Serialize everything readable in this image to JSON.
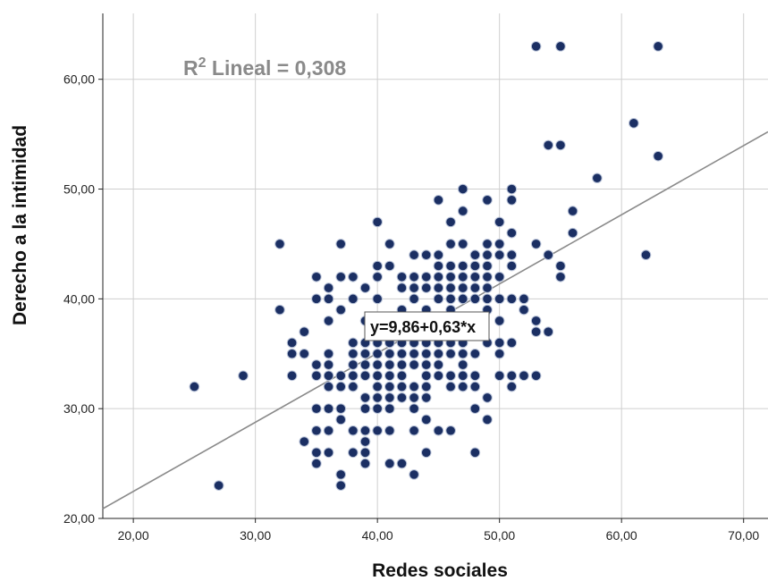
{
  "chart_data": {
    "type": "scatter",
    "xlabel": "Redes sociales",
    "ylabel": "Derecho a la intimidad",
    "xlim": [
      17.5,
      72
    ],
    "ylim": [
      20,
      66
    ],
    "x_ticks": [
      "20,00",
      "30,00",
      "40,00",
      "50,00",
      "60,00",
      "70,00"
    ],
    "y_ticks": [
      "20,00",
      "30,00",
      "40,00",
      "50,00",
      "60,00"
    ],
    "grid": true,
    "r2_text": "R² Lineal = 0,308",
    "r2_prefix": "R",
    "r2_sup": "2",
    "r2_rest": " Lineal = 0,308",
    "fit_label": "y=9,86+0,63*x",
    "fit": {
      "intercept": 9.86,
      "slope": 0.63
    },
    "point_color": "#1b2f63",
    "points": [
      [
        25,
        32
      ],
      [
        27,
        23
      ],
      [
        29,
        33
      ],
      [
        32,
        45
      ],
      [
        32,
        39
      ],
      [
        33,
        36
      ],
      [
        33,
        35
      ],
      [
        33,
        33
      ],
      [
        34,
        37
      ],
      [
        34,
        35
      ],
      [
        34,
        27
      ],
      [
        35,
        42
      ],
      [
        35,
        40
      ],
      [
        35,
        34
      ],
      [
        35,
        33
      ],
      [
        35,
        30
      ],
      [
        35,
        28
      ],
      [
        35,
        26
      ],
      [
        35,
        25
      ],
      [
        36,
        41
      ],
      [
        36,
        40
      ],
      [
        36,
        38
      ],
      [
        36,
        35
      ],
      [
        36,
        34
      ],
      [
        36,
        33
      ],
      [
        36,
        32
      ],
      [
        36,
        30
      ],
      [
        36,
        28
      ],
      [
        36,
        26
      ],
      [
        37,
        45
      ],
      [
        37,
        42
      ],
      [
        37,
        39
      ],
      [
        37,
        33
      ],
      [
        37,
        32
      ],
      [
        37,
        30
      ],
      [
        37,
        29
      ],
      [
        37,
        24
      ],
      [
        37,
        23
      ],
      [
        38,
        42
      ],
      [
        38,
        40
      ],
      [
        38,
        36
      ],
      [
        38,
        35
      ],
      [
        38,
        34
      ],
      [
        38,
        33
      ],
      [
        38,
        32
      ],
      [
        38,
        28
      ],
      [
        38,
        26
      ],
      [
        39,
        41
      ],
      [
        39,
        38
      ],
      [
        39,
        36
      ],
      [
        39,
        35
      ],
      [
        39,
        34
      ],
      [
        39,
        33
      ],
      [
        39,
        31
      ],
      [
        39,
        30
      ],
      [
        39,
        28
      ],
      [
        39,
        27
      ],
      [
        39,
        26
      ],
      [
        39,
        25
      ],
      [
        40,
        47
      ],
      [
        40,
        43
      ],
      [
        40,
        42
      ],
      [
        40,
        40
      ],
      [
        40,
        38
      ],
      [
        40,
        36
      ],
      [
        40,
        35
      ],
      [
        40,
        34
      ],
      [
        40,
        33
      ],
      [
        40,
        32
      ],
      [
        40,
        31
      ],
      [
        40,
        30
      ],
      [
        40,
        28
      ],
      [
        41,
        45
      ],
      [
        41,
        43
      ],
      [
        41,
        38
      ],
      [
        41,
        37
      ],
      [
        41,
        36
      ],
      [
        41,
        35
      ],
      [
        41,
        34
      ],
      [
        41,
        33
      ],
      [
        41,
        32
      ],
      [
        41,
        31
      ],
      [
        41,
        30
      ],
      [
        41,
        28
      ],
      [
        41,
        25
      ],
      [
        42,
        42
      ],
      [
        42,
        41
      ],
      [
        42,
        39
      ],
      [
        42,
        37
      ],
      [
        42,
        36
      ],
      [
        42,
        35
      ],
      [
        42,
        34
      ],
      [
        42,
        33
      ],
      [
        42,
        32
      ],
      [
        42,
        31
      ],
      [
        42,
        25
      ],
      [
        43,
        44
      ],
      [
        43,
        42
      ],
      [
        43,
        41
      ],
      [
        43,
        40
      ],
      [
        43,
        38
      ],
      [
        43,
        37
      ],
      [
        43,
        36
      ],
      [
        43,
        35
      ],
      [
        43,
        34
      ],
      [
        43,
        32
      ],
      [
        43,
        31
      ],
      [
        43,
        30
      ],
      [
        43,
        28
      ],
      [
        43,
        24
      ],
      [
        44,
        44
      ],
      [
        44,
        42
      ],
      [
        44,
        41
      ],
      [
        44,
        39
      ],
      [
        44,
        37
      ],
      [
        44,
        36
      ],
      [
        44,
        35
      ],
      [
        44,
        34
      ],
      [
        44,
        33
      ],
      [
        44,
        32
      ],
      [
        44,
        31
      ],
      [
        44,
        29
      ],
      [
        44,
        26
      ],
      [
        45,
        49
      ],
      [
        45,
        44
      ],
      [
        45,
        43
      ],
      [
        45,
        42
      ],
      [
        45,
        41
      ],
      [
        45,
        40
      ],
      [
        45,
        38
      ],
      [
        45,
        37
      ],
      [
        45,
        36
      ],
      [
        45,
        35
      ],
      [
        45,
        34
      ],
      [
        45,
        33
      ],
      [
        45,
        28
      ],
      [
        46,
        47
      ],
      [
        46,
        45
      ],
      [
        46,
        43
      ],
      [
        46,
        42
      ],
      [
        46,
        41
      ],
      [
        46,
        40
      ],
      [
        46,
        39
      ],
      [
        46,
        37
      ],
      [
        46,
        36
      ],
      [
        46,
        35
      ],
      [
        46,
        33
      ],
      [
        46,
        32
      ],
      [
        46,
        28
      ],
      [
        47,
        50
      ],
      [
        47,
        48
      ],
      [
        47,
        45
      ],
      [
        47,
        43
      ],
      [
        47,
        42
      ],
      [
        47,
        41
      ],
      [
        47,
        40
      ],
      [
        47,
        38
      ],
      [
        47,
        36
      ],
      [
        47,
        35
      ],
      [
        47,
        34
      ],
      [
        47,
        33
      ],
      [
        47,
        32
      ],
      [
        48,
        44
      ],
      [
        48,
        43
      ],
      [
        48,
        42
      ],
      [
        48,
        41
      ],
      [
        48,
        40
      ],
      [
        48,
        38
      ],
      [
        48,
        37
      ],
      [
        48,
        35
      ],
      [
        48,
        33
      ],
      [
        48,
        32
      ],
      [
        48,
        30
      ],
      [
        48,
        26
      ],
      [
        49,
        49
      ],
      [
        49,
        45
      ],
      [
        49,
        44
      ],
      [
        49,
        43
      ],
      [
        49,
        42
      ],
      [
        49,
        41
      ],
      [
        49,
        40
      ],
      [
        49,
        39
      ],
      [
        49,
        36
      ],
      [
        49,
        31
      ],
      [
        49,
        29
      ],
      [
        50,
        47
      ],
      [
        50,
        45
      ],
      [
        50,
        44
      ],
      [
        50,
        42
      ],
      [
        50,
        40
      ],
      [
        50,
        38
      ],
      [
        50,
        36
      ],
      [
        50,
        35
      ],
      [
        50,
        33
      ],
      [
        51,
        50
      ],
      [
        51,
        49
      ],
      [
        51,
        46
      ],
      [
        51,
        44
      ],
      [
        51,
        43
      ],
      [
        51,
        40
      ],
      [
        51,
        36
      ],
      [
        51,
        33
      ],
      [
        51,
        32
      ],
      [
        52,
        40
      ],
      [
        52,
        39
      ],
      [
        52,
        33
      ],
      [
        53,
        63
      ],
      [
        53,
        45
      ],
      [
        53,
        38
      ],
      [
        53,
        37
      ],
      [
        53,
        33
      ],
      [
        54,
        54
      ],
      [
        54,
        44
      ],
      [
        54,
        37
      ],
      [
        55,
        63
      ],
      [
        55,
        54
      ],
      [
        55,
        43
      ],
      [
        55,
        42
      ],
      [
        56,
        48
      ],
      [
        56,
        46
      ],
      [
        58,
        51
      ],
      [
        61,
        56
      ],
      [
        62,
        44
      ],
      [
        63,
        63
      ],
      [
        63,
        53
      ]
    ]
  }
}
